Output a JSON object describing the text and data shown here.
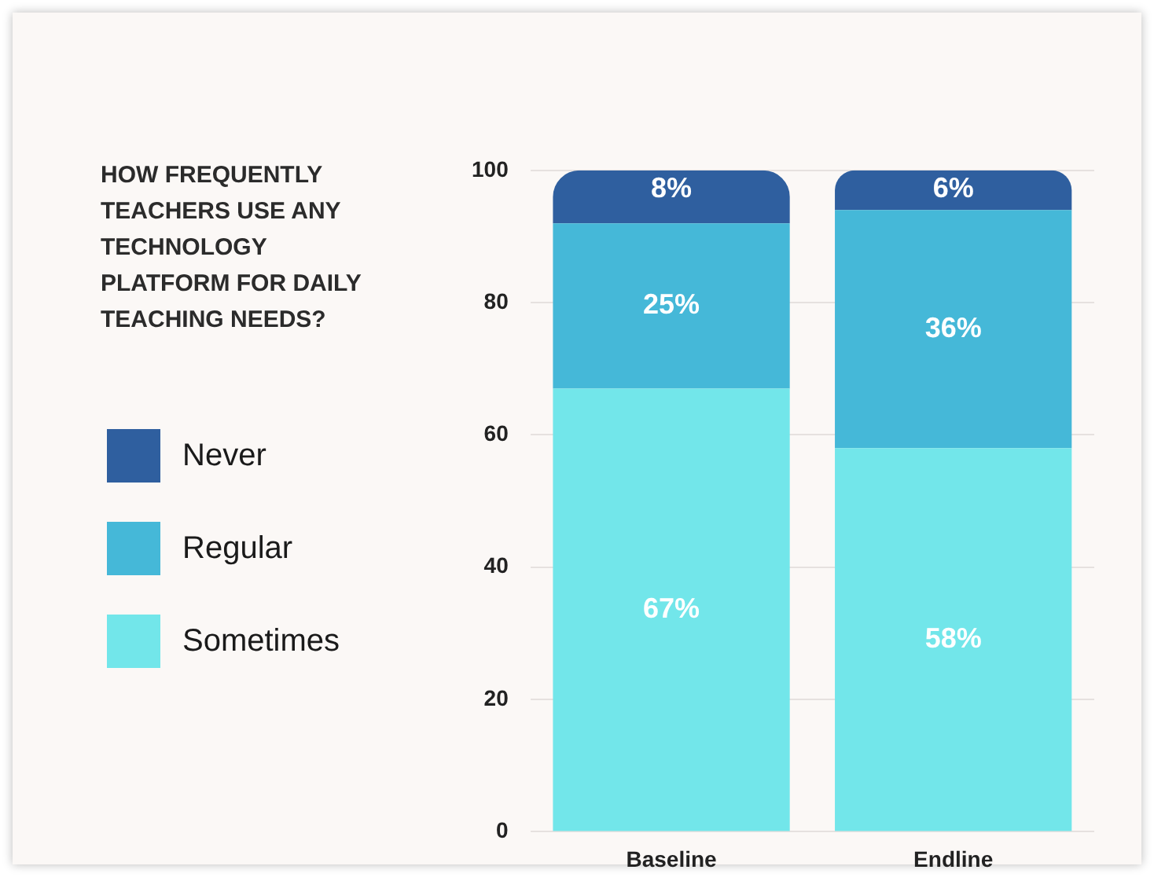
{
  "chart_data": {
    "type": "bar",
    "title": "HOW FREQUENTLY TEACHERS USE ANY TECHNOLOGY PLATFORM FOR DAILY TEACHING NEEDS?",
    "categories": [
      "Baseline",
      "Endline"
    ],
    "stacked": true,
    "legend": "left",
    "grid": "y",
    "ylim": [
      0,
      100
    ],
    "yticks": [
      0,
      20,
      40,
      60,
      80,
      100
    ],
    "series": [
      {
        "name": "Sometimes",
        "color": "#72e6ea",
        "values": [
          67,
          58
        ],
        "value_labels": [
          "67%",
          "58%"
        ]
      },
      {
        "name": "Regular",
        "color": "#45b8d8",
        "values": [
          25,
          36
        ],
        "value_labels": [
          "25%",
          "36%"
        ]
      },
      {
        "name": "Never",
        "color": "#2f5f9f",
        "values": [
          8,
          6
        ],
        "value_labels": [
          "8%",
          "6%"
        ]
      }
    ]
  }
}
